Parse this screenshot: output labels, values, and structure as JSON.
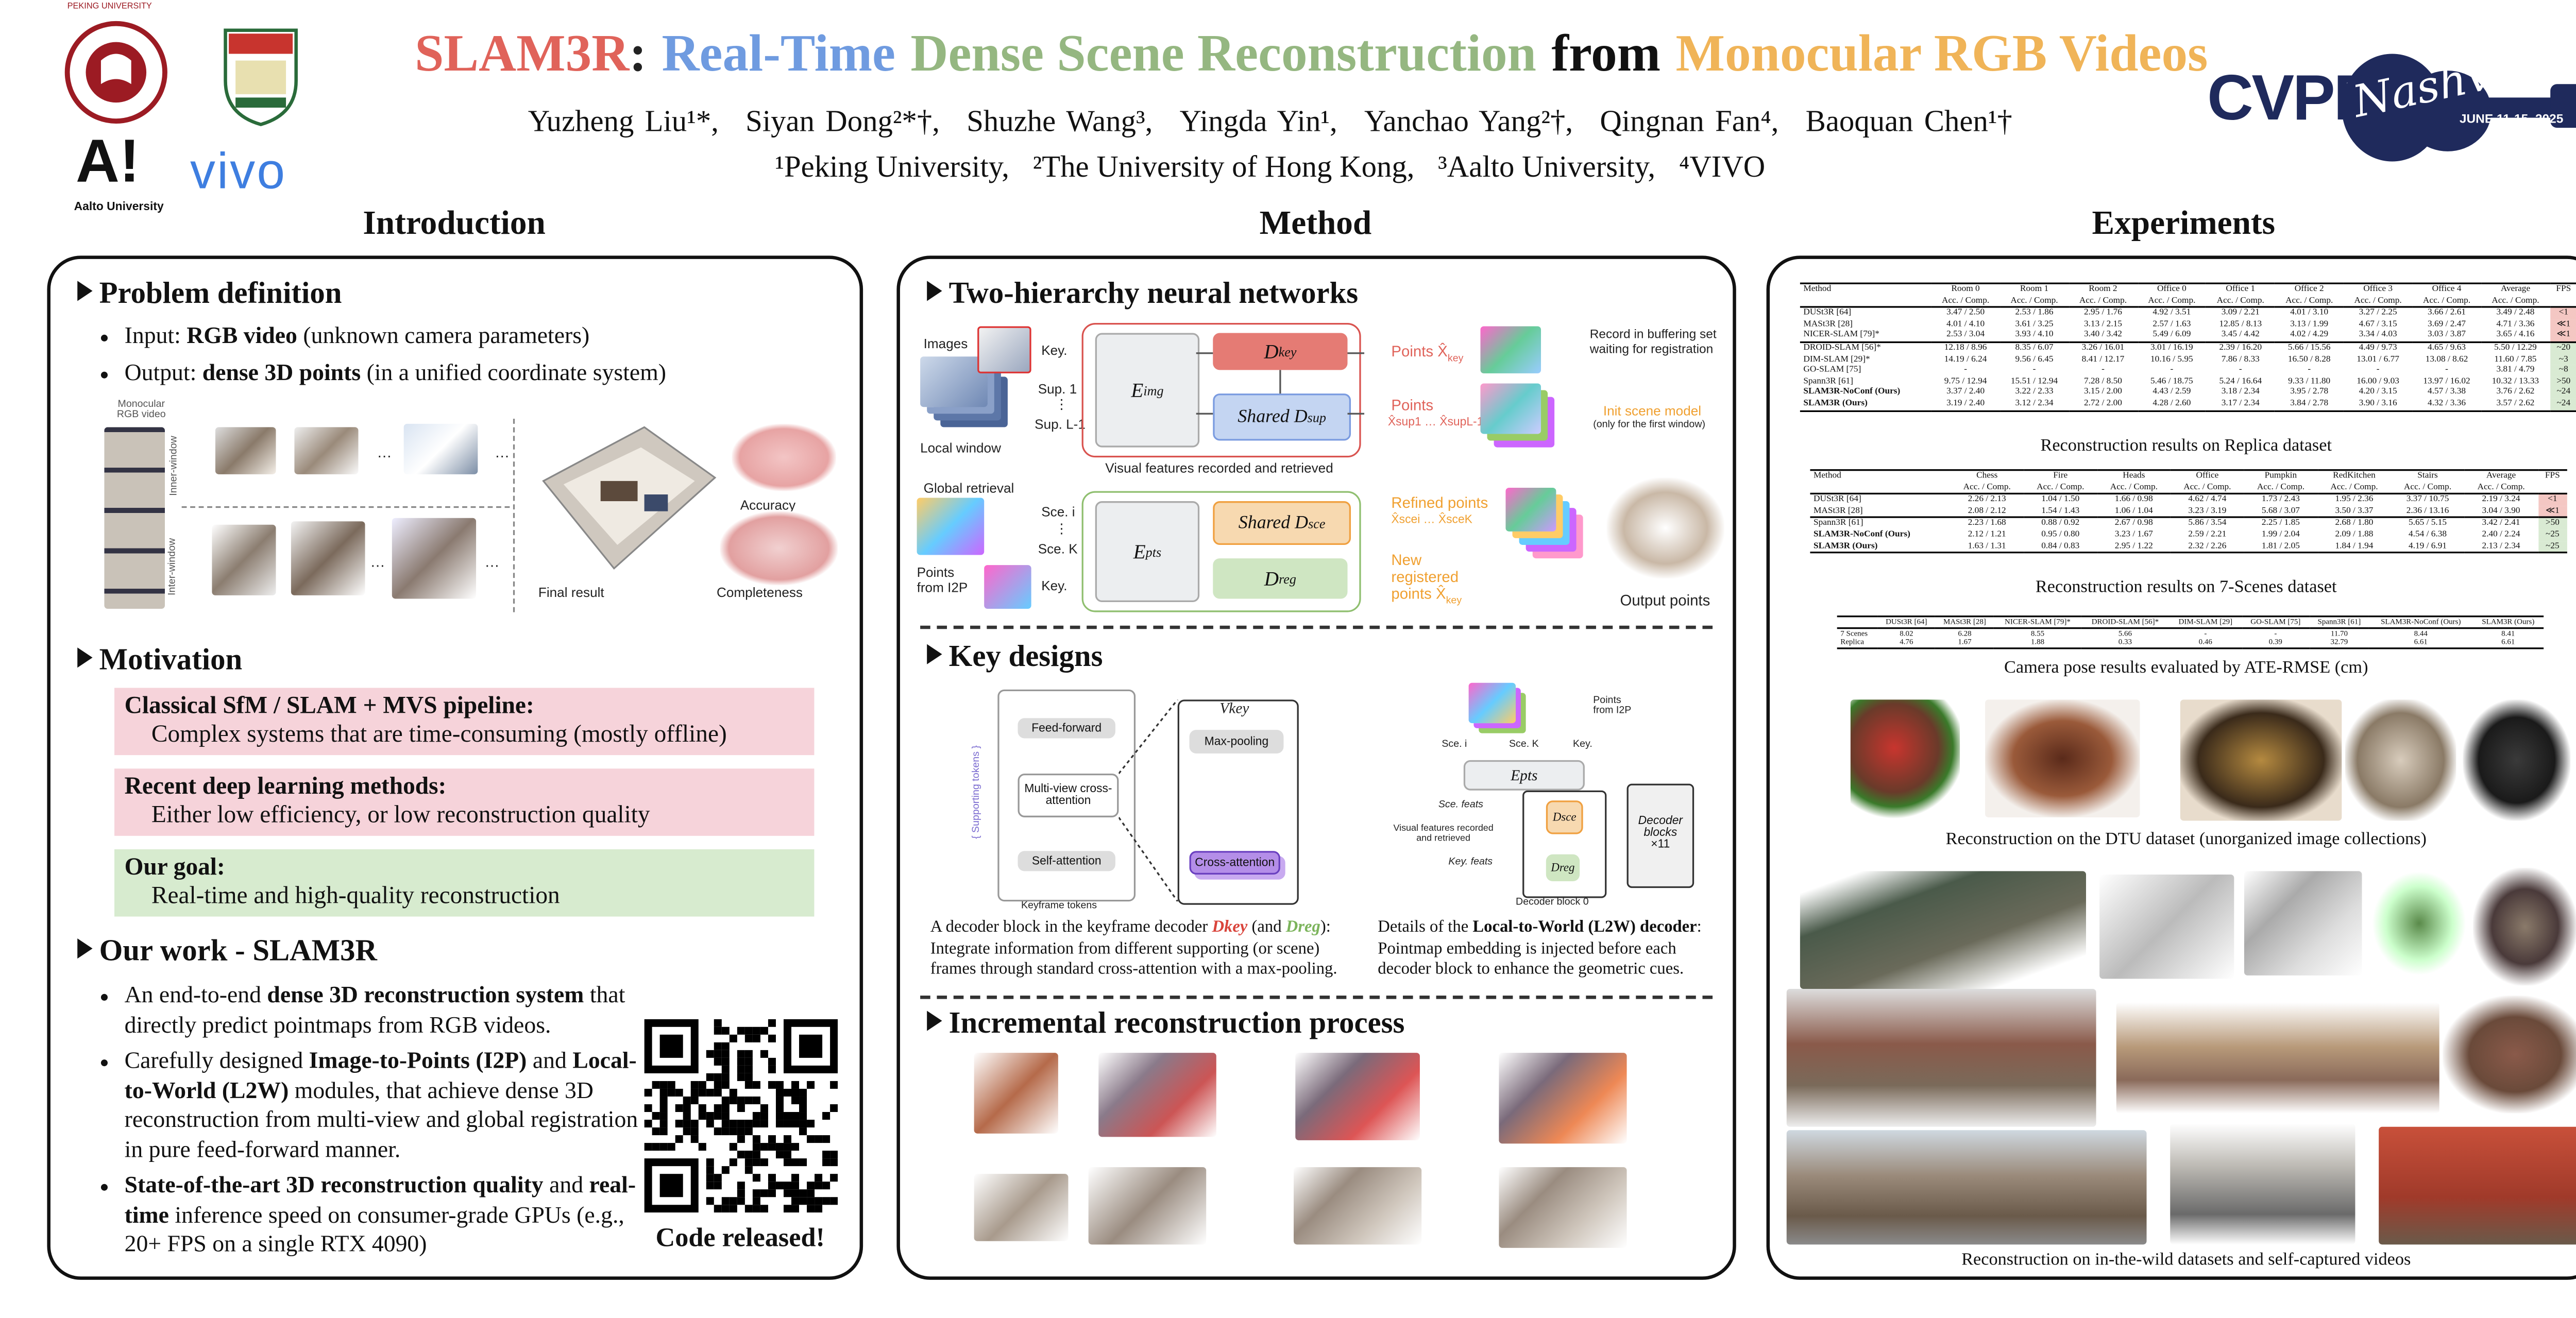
{
  "header": {
    "title": [
      {
        "text": "SLAM3R",
        "color": "#e0635a"
      },
      {
        "text": ":",
        "color": "#222222"
      },
      {
        "text": "Real-Time",
        "color": "#6f9be0"
      },
      {
        "text": "Dense Scene Reconstruction",
        "color": "#95b781"
      },
      {
        "text": "from",
        "color": "#111111"
      },
      {
        "text": "Monocular RGB Videos",
        "color": "#f0b458"
      }
    ],
    "authors": [
      "Yuzheng Liu¹*,",
      "Siyan Dong²*†,",
      "Shuzhe Wang³,",
      "Yingda Yin¹,",
      "Yanchao Yang²†,",
      "Qingnan Fan⁴,",
      "Baoquan Chen¹†"
    ],
    "affiliations": [
      "¹Peking University,",
      "²The University of Hong Kong,",
      "³Aalto University,",
      "⁴VIVO"
    ],
    "logos": {
      "pku": "PEKING UNIVERSITY",
      "aalto_mark": "A!",
      "aalto": "Aalto University",
      "vivo": "vivo",
      "cvpr": "CVPR",
      "city": "Nashville",
      "dates": "JUNE 11-15, 2025"
    }
  },
  "sections": [
    "Introduction",
    "Method",
    "Experiments"
  ],
  "intro": {
    "problem": {
      "heading": "Problem definition",
      "bullets": [
        {
          "segments": [
            {
              "text": "Input: "
            },
            {
              "text": "RGB video",
              "bold": true
            },
            {
              "text": " (unknown camera parameters)"
            }
          ]
        },
        {
          "segments": [
            {
              "text": "Output: "
            },
            {
              "text": "dense 3D points",
              "bold": true
            },
            {
              "text": " (in a unified coordinate system)"
            }
          ]
        }
      ],
      "figure": {
        "video": "Monocular RGB video",
        "inner": "Inner-window",
        "inter": "Inter-window",
        "final": "Final result",
        "accuracy": "Accuracy",
        "completeness": "Completeness",
        "dots": "…"
      }
    },
    "motivation": {
      "heading": "Motivation",
      "boxes": [
        {
          "title": "Classical SfM / SLAM + MVS pipeline:",
          "text": "Complex systems that are time-consuming (mostly offline)",
          "color": "#f6d3da"
        },
        {
          "title": "Recent deep learning methods:",
          "text": "Either low efficiency, or low reconstruction quality",
          "color": "#f6d3da"
        },
        {
          "title": "Our goal:",
          "text": "Real-time and high-quality reconstruction",
          "color": "#d7ebcf"
        }
      ]
    },
    "work": {
      "heading": "Our work - SLAM3R",
      "bullets": [
        {
          "segments": [
            {
              "text": "An end-to-end "
            },
            {
              "text": "dense 3D reconstruction system",
              "bold": true
            },
            {
              "text": " that directly predict pointmaps from RGB videos."
            }
          ]
        },
        {
          "segments": [
            {
              "text": "Carefully designed "
            },
            {
              "text": "Image-to-Points (I2P)",
              "bold": true
            },
            {
              "text": " and "
            },
            {
              "text": "Local-to-World (L2W)",
              "bold": true
            },
            {
              "text": " modules, that achieve dense 3D reconstruction from multi-view and global registration in pure feed-forward manner."
            }
          ]
        },
        {
          "segments": [
            {
              "text": "State-of-the-art 3D reconstruction quality",
              "bold": true
            },
            {
              "text": " and "
            },
            {
              "text": "real-time",
              "bold": true
            },
            {
              "text": " inference speed on consumer-grade GPUs (e.g., 20+ FPS on a single RTX 4090)"
            }
          ]
        }
      ],
      "code": "Code released!"
    }
  },
  "method": {
    "networks": {
      "heading": "Two-hierarchy neural networks",
      "images": "Images",
      "key": "Key.",
      "sup1": "Sup. 1",
      "dots": "⋮",
      "supL": "Sup. L-1",
      "window": "Local window",
      "e_img": {
        "base": "E",
        "sub": "img"
      },
      "d_key": {
        "base": "D",
        "sub": "key"
      },
      "d_sup": {
        "base": "Shared D",
        "sub": "sup"
      },
      "points_key": {
        "base": "Points X̂",
        "sub": "key"
      },
      "points_sup": {
        "base": "Points",
        "sub": "X̂sup1 … X̂supL-1"
      },
      "record": "Record in buffering set waiting for registration",
      "init": "Init scene model",
      "init_note": "(only for the first window)",
      "visual": "Visual features recorded and retrieved",
      "global": "Global retrieval",
      "sce_i": "Sce. i",
      "sce_k": "Sce. K",
      "key2": "Key.",
      "from_i2p": "Points from I2P",
      "e_pts": {
        "base": "E",
        "sub": "pts"
      },
      "d_sce": {
        "base": "Shared D",
        "sub": "sce"
      },
      "d_reg": {
        "base": "D",
        "sub": "reg"
      },
      "refined": {
        "base": "Refined points",
        "sub": "X̂scei … X̂sceK"
      },
      "new_reg": {
        "base": "New registered points X̂",
        "sub": "key"
      },
      "output": "Output points"
    },
    "designs": {
      "heading": "Key designs",
      "left": {
        "feed": "Feed-forward",
        "cross": "Multi-view cross-attention",
        "self": "Self-attention",
        "key_tokens": "Keyframe tokens",
        "sup_tokens": "{ Supporting tokens }",
        "maxpool": "Max-pooling",
        "cross2": "Cross-attention",
        "vkey": "Vkey"
      },
      "right": {
        "points": "Points from I2P",
        "sce_i": "Sce. i",
        "sce_k": "Sce. K",
        "key": "Key.",
        "e_pts": "Epts",
        "sce_feats": "Sce. feats",
        "key_feats": "Key. feats",
        "visual": "Visual features recorded and retrieved",
        "block0": "Decoder block 0",
        "blocks": "Decoder blocks",
        "times": "×11",
        "d_sce": "Dsce",
        "d_reg": "Dreg"
      },
      "caption_left": [
        {
          "text": "A decoder block in the keyframe decoder "
        },
        {
          "text": "Dkey",
          "color": "#d9443b",
          "bold": true
        },
        {
          "text": " (and "
        },
        {
          "text": "Dreg",
          "color": "#7cb45c",
          "bold": true
        },
        {
          "text": "): Integrate information from different supporting (or scene) frames through standard cross-attention with a max-pooling."
        }
      ],
      "caption_right": [
        {
          "text": "Details of the "
        },
        {
          "text": "Local-to-World (L2W) decoder",
          "bold": true
        },
        {
          "text": ": Pointmap embedding is injected before each decoder block to enhance the geometric cues."
        }
      ]
    },
    "incremental": {
      "heading": "Incremental reconstruction process"
    }
  },
  "experiments": {
    "replica": {
      "caption": "Reconstruction results on Replica dataset",
      "header": [
        "Method",
        "Room 0",
        "Room 1",
        "Room 2",
        "Office 0",
        "Office 1",
        "Office 2",
        "Office 3",
        "Office 4",
        "Average",
        "FPS"
      ],
      "subheader": "Acc. / Comp.",
      "groups": [
        [
          [
            "DUSt3R [64]",
            "3.47 / 2.50",
            "2.53 / 1.86",
            "2.95 / 1.76",
            "4.92 / 3.51",
            "3.09 / 2.21",
            "4.01 / 3.10",
            "3.27 / 2.25",
            "3.66 / 2.61",
            "3.49 / 2.48",
            "<1"
          ],
          [
            "MASt3R [28]",
            "4.01 / 4.10",
            "3.61 / 3.25",
            "3.13 / 2.15",
            "2.57 / 1.63",
            "12.85 / 8.13",
            "3.13 / 1.99",
            "4.67 / 3.15",
            "3.69 / 2.47",
            "4.71 / 3.36",
            "≪1"
          ],
          [
            "NICER-SLAM [79]*",
            "2.53 / 3.04",
            "3.93 / 4.10",
            "3.40 / 3.42",
            "5.49 / 6.09",
            "3.45 / 4.42",
            "4.02 / 4.29",
            "3.34 / 4.03",
            "3.03 / 3.87",
            "3.65 / 4.16",
            "≪1"
          ]
        ],
        [
          [
            "DROID-SLAM [56]*",
            "12.18 / 8.96",
            "8.35 / 6.07",
            "3.26 / 16.01",
            "3.01 / 16.19",
            "2.39 / 16.20",
            "5.66 / 15.56",
            "4.49 / 9.73",
            "4.65 / 9.63",
            "5.50 / 12.29",
            "~20"
          ],
          [
            "DIM-SLAM [29]*",
            "14.19 / 6.24",
            "9.56 / 6.45",
            "8.41 / 12.17",
            "10.16 / 5.95",
            "7.86 / 8.33",
            "16.50 / 8.28",
            "13.01 / 6.77",
            "13.08 / 8.62",
            "11.60 / 7.85",
            "~3"
          ],
          [
            "GO-SLAM [75]",
            "-",
            "-",
            "-",
            "-",
            "-",
            "-",
            "-",
            "-",
            "3.81 / 4.79",
            "~8"
          ],
          [
            "Spann3R [61]",
            "9.75 / 12.94",
            "15.51 / 12.94",
            "7.28 / 8.50",
            "5.46 / 18.75",
            "5.24 / 16.64",
            "9.33 / 11.80",
            "16.00 / 9.03",
            "13.97 / 16.02",
            "10.32 / 13.33",
            ">50"
          ],
          [
            "SLAM3R-NoConf (Ours)",
            "3.37 / 2.40",
            "3.22 / 2.33",
            "3.15 / 2.00",
            "4.43 / 2.59",
            "3.18 / 2.34",
            "3.95 / 2.78",
            "4.20 / 3.15",
            "4.57 / 3.38",
            "3.76 / 2.62",
            "~24"
          ],
          [
            "SLAM3R (Ours)",
            "3.19 / 2.40",
            "3.12 / 2.34",
            "2.72 / 2.00",
            "4.28 / 2.60",
            "3.17 / 2.34",
            "3.84 / 2.78",
            "3.90 / 3.16",
            "4.32 / 3.36",
            "3.57 / 2.62",
            "~24"
          ]
        ]
      ]
    },
    "sevenscenes": {
      "caption": "Reconstruction results on 7-Scenes dataset",
      "header": [
        "Method",
        "Chess",
        "Fire",
        "Heads",
        "Office",
        "Pumpkin",
        "RedKitchen",
        "Stairs",
        "Average",
        "FPS"
      ],
      "subheader": "Acc. / Comp.",
      "groups": [
        [
          [
            "DUSt3R [64]",
            "2.26 / 2.13",
            "1.04 / 1.50",
            "1.66 / 0.98",
            "4.62 / 4.74",
            "1.73 / 2.43",
            "1.95 / 2.36",
            "3.37 / 10.75",
            "2.19 / 3.24",
            "<1"
          ],
          [
            "MASt3R [28]",
            "2.08 / 2.12",
            "1.54 / 1.43",
            "1.06 / 1.04",
            "3.23 / 3.19",
            "5.68 / 3.07",
            "3.50 / 3.37",
            "2.36 / 13.16",
            "3.04 / 3.90",
            "≪1"
          ]
        ],
        [
          [
            "Spann3R [61]",
            "2.23 / 1.68",
            "0.88 / 0.92",
            "2.67 / 0.98",
            "5.86 / 3.54",
            "2.25 / 1.85",
            "2.68 / 1.80",
            "5.65 / 5.15",
            "3.42 / 2.41",
            ">50"
          ],
          [
            "SLAM3R-NoConf (Ours)",
            "2.12 / 1.21",
            "0.95 / 0.80",
            "3.23 / 1.67",
            "2.59 / 2.21",
            "1.99 / 2.04",
            "2.09 / 1.88",
            "4.54 / 6.38",
            "2.40 / 2.24",
            "~25"
          ],
          [
            "SLAM3R (Ours)",
            "1.63 / 1.31",
            "0.84 / 0.83",
            "2.95 / 1.22",
            "2.32 / 2.26",
            "1.81 / 2.05",
            "1.84 / 1.94",
            "4.19 / 6.91",
            "2.13 / 2.34",
            "~25"
          ]
        ]
      ]
    },
    "ate": {
      "caption": "Camera pose results evaluated by ATE-RMSE (cm)",
      "header": [
        "",
        "DUSt3R [64]",
        "MASt3R [28]",
        "NICER-SLAM [79]*",
        "DROID-SLAM [56]*",
        "DIM-SLAM [29]",
        "GO-SLAM [75]",
        "Spann3R [61]",
        "SLAM3R-NoConf (Ours)",
        "SLAM3R (Ours)"
      ],
      "groups": [
        [
          [
            "7 Scenes",
            "8.02",
            "6.28",
            "8.55",
            "5.66",
            "-",
            "-",
            "11.70",
            "8.44",
            "8.41"
          ],
          [
            "Replica",
            "4.76",
            "1.67",
            "1.88",
            "0.33",
            "0.46",
            "0.39",
            "32.79",
            "6.61",
            "6.61"
          ]
        ]
      ]
    },
    "dtu_caption": "Reconstruction on the DTU dataset (unorganized image collections)",
    "wild_caption": "Reconstruction on in-the-wild datasets and self-captured videos"
  }
}
